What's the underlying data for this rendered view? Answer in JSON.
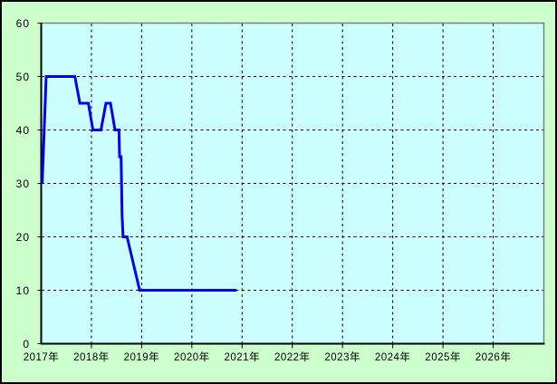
{
  "chart_data": {
    "type": "line",
    "title": "",
    "xlabel": "",
    "ylabel": "",
    "x_categories": [
      "2017年",
      "2018年",
      "2019年",
      "2020年",
      "2021年",
      "2022年",
      "2023年",
      "2024年",
      "2025年",
      "2026年"
    ],
    "x_tick_years": [
      2017,
      2018,
      2019,
      2020,
      2021,
      2022,
      2023,
      2024,
      2025,
      2026
    ],
    "y_tick_labels": [
      "0",
      "10",
      "20",
      "30",
      "40",
      "50",
      "60"
    ],
    "y_ticks": [
      0,
      10,
      20,
      30,
      40,
      50,
      60
    ],
    "xlim": [
      2017,
      2027
    ],
    "ylim": [
      0,
      60
    ],
    "grid": "dashed black, both axes",
    "legend": "none",
    "series": [
      {
        "name": "value-line",
        "color": "#0000f0",
        "points": [
          [
            2017.02,
            30
          ],
          [
            2017.1,
            50
          ],
          [
            2017.67,
            50
          ],
          [
            2017.77,
            45
          ],
          [
            2017.94,
            45
          ],
          [
            2018.03,
            40
          ],
          [
            2018.19,
            40
          ],
          [
            2018.29,
            45
          ],
          [
            2018.38,
            45
          ],
          [
            2018.47,
            40
          ],
          [
            2018.55,
            40
          ],
          [
            2018.56,
            35
          ],
          [
            2018.59,
            35
          ],
          [
            2018.61,
            24
          ],
          [
            2018.63,
            20
          ],
          [
            2018.71,
            20
          ],
          [
            2018.96,
            10
          ],
          [
            2020.89,
            10
          ]
        ]
      }
    ],
    "colors": {
      "page_background": "#ccffcc",
      "plot_background": "#ccffff",
      "plot_border": "#808080",
      "axis": "#000000",
      "grid": "#000000",
      "line": "#0000f0",
      "text": "#000000",
      "outer_border": "#000000"
    }
  }
}
